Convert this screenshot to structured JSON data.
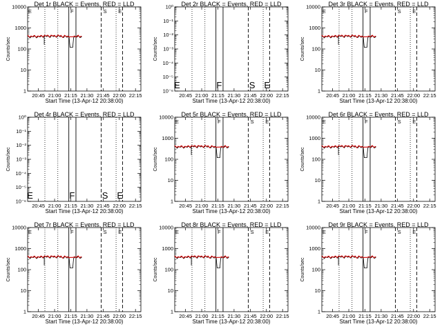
{
  "figure": {
    "shared_xlabel": "Start Time (13-Apr-12 20:38:00)",
    "shared_ylabel": "Counts/sec",
    "x_tick_labels": [
      "20:45",
      "21:00",
      "21:15",
      "21:30",
      "21:45",
      "22:00",
      "22:15"
    ],
    "log_tick_labels_data": [
      "1",
      "10",
      "100",
      "1000",
      "10000"
    ],
    "log_tick_labels_empty": [
      "10⁰",
      "10⁻¹",
      "10⁻²",
      "10⁻³",
      "10⁻⁴",
      "10⁻⁵",
      "10⁻⁶"
    ],
    "marker_letters": [
      "E",
      "F",
      "S",
      "E"
    ],
    "series_colors": {
      "events": "#000000",
      "lld": "#cc0000"
    }
  },
  "chart_data": [
    {
      "type": "line",
      "panel": "det-1r",
      "title": "Det 1r BLACK = Events, RED = LLD",
      "has_data": true,
      "yscale": "log",
      "ylim": [
        1,
        10000
      ],
      "x_ticks": [
        "20:45",
        "21:00",
        "21:15",
        "21:30",
        "21:45",
        "22:00",
        "22:15"
      ],
      "series": [
        {
          "name": "Events",
          "color": "#000000",
          "baseline": 380
        },
        {
          "name": "LLD",
          "color": "#cc0000",
          "baseline": 400
        }
      ]
    },
    {
      "type": "line",
      "panel": "det-2r",
      "title": "Det 2r BLACK = Events, RED = LLD",
      "has_data": false,
      "yscale": "log",
      "ylim": [
        1e-06,
        1
      ],
      "x_ticks": [
        "20:45",
        "21:00",
        "21:15",
        "21:30",
        "21:45",
        "22:00",
        "22:15"
      ],
      "series": []
    },
    {
      "type": "line",
      "panel": "det-3r",
      "title": "Det 3r BLACK = Events, RED = LLD",
      "has_data": true,
      "yscale": "log",
      "ylim": [
        1,
        10000
      ],
      "x_ticks": [
        "20:45",
        "21:00",
        "21:15",
        "21:30",
        "21:45",
        "22:00",
        "22:15"
      ],
      "series": [
        {
          "name": "Events",
          "color": "#000000",
          "baseline": 380
        },
        {
          "name": "LLD",
          "color": "#cc0000",
          "baseline": 400
        }
      ]
    },
    {
      "type": "line",
      "panel": "det-4r",
      "title": "Det 4r BLACK = Events, RED = LLD",
      "has_data": false,
      "yscale": "log",
      "ylim": [
        1e-06,
        1
      ],
      "x_ticks": [
        "20:45",
        "21:00",
        "21:15",
        "21:30",
        "21:45",
        "22:00",
        "22:15"
      ],
      "series": []
    },
    {
      "type": "line",
      "panel": "det-5r",
      "title": "Det 5r BLACK = Events, RED = LLD",
      "has_data": true,
      "yscale": "log",
      "ylim": [
        1,
        10000
      ],
      "x_ticks": [
        "20:45",
        "21:00",
        "21:15",
        "21:30",
        "21:45",
        "22:00",
        "22:15"
      ],
      "series": [
        {
          "name": "Events",
          "color": "#000000",
          "baseline": 380
        },
        {
          "name": "LLD",
          "color": "#cc0000",
          "baseline": 400
        }
      ]
    },
    {
      "type": "line",
      "panel": "det-6r",
      "title": "Det 6r BLACK = Events, RED = LLD",
      "has_data": true,
      "yscale": "log",
      "ylim": [
        1,
        10000
      ],
      "x_ticks": [
        "20:45",
        "21:00",
        "21:15",
        "21:30",
        "21:45",
        "22:00",
        "22:15"
      ],
      "series": [
        {
          "name": "Events",
          "color": "#000000",
          "baseline": 380
        },
        {
          "name": "LLD",
          "color": "#cc0000",
          "baseline": 400
        }
      ]
    },
    {
      "type": "line",
      "panel": "det-7r",
      "title": "Det 7r BLACK = Events, RED = LLD",
      "has_data": true,
      "yscale": "log",
      "ylim": [
        1,
        10000
      ],
      "x_ticks": [
        "20:45",
        "21:00",
        "21:15",
        "21:30",
        "21:45",
        "22:00",
        "22:15"
      ],
      "series": [
        {
          "name": "Events",
          "color": "#000000",
          "baseline": 380
        },
        {
          "name": "LLD",
          "color": "#cc0000",
          "baseline": 400
        }
      ]
    },
    {
      "type": "line",
      "panel": "det-8r",
      "title": "Det 8r BLACK = Events, RED = LLD",
      "has_data": true,
      "yscale": "log",
      "ylim": [
        1,
        10000
      ],
      "x_ticks": [
        "20:45",
        "21:00",
        "21:15",
        "21:30",
        "21:45",
        "22:00",
        "22:15"
      ],
      "series": [
        {
          "name": "Events",
          "color": "#000000",
          "baseline": 380
        },
        {
          "name": "LLD",
          "color": "#cc0000",
          "baseline": 400
        }
      ]
    },
    {
      "type": "line",
      "panel": "det-9r",
      "title": "Det 9r BLACK = Events, RED = LLD",
      "has_data": true,
      "yscale": "log",
      "ylim": [
        1,
        10000
      ],
      "x_ticks": [
        "20:45",
        "21:00",
        "21:15",
        "21:30",
        "21:45",
        "22:00",
        "22:15"
      ],
      "series": [
        {
          "name": "Events",
          "color": "#000000",
          "baseline": 380
        },
        {
          "name": "LLD",
          "color": "#cc0000",
          "baseline": 400
        }
      ]
    }
  ]
}
